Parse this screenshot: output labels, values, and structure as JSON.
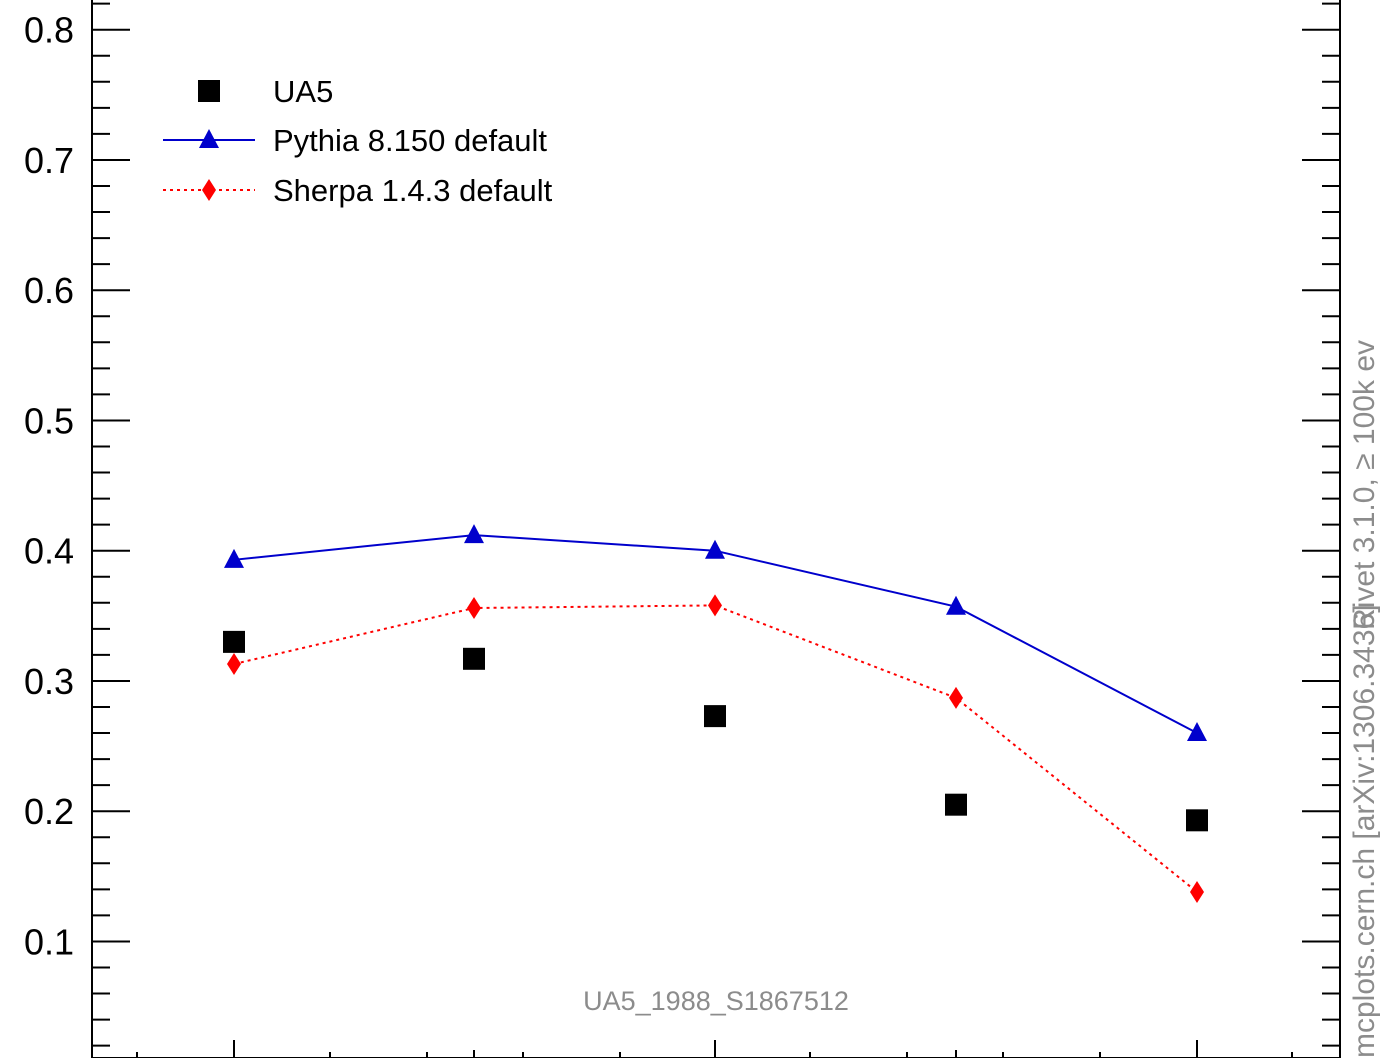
{
  "chart_data": {
    "type": "scatter",
    "x": [
      1,
      2,
      3,
      4,
      5
    ],
    "ylim": [
      0.0,
      0.8
    ],
    "yticks": [
      0.1,
      0.2,
      0.3,
      0.4,
      0.5,
      0.6,
      0.7,
      0.8
    ],
    "ytick_labels": [
      "0.1",
      "0.2",
      "0.3",
      "0.4",
      "0.5",
      "0.6",
      "0.7",
      "0.8"
    ],
    "series": [
      {
        "name": "UA5",
        "marker": "square",
        "line": "none",
        "color": "#000000",
        "values": [
          0.33,
          0.317,
          0.273,
          0.205,
          0.193
        ]
      },
      {
        "name": "Pythia 8.150 default",
        "marker": "triangle",
        "line": "solid",
        "color": "#0000cc",
        "values": [
          0.393,
          0.412,
          0.4,
          0.357,
          0.26
        ]
      },
      {
        "name": "Sherpa 1.4.3 default",
        "marker": "diamond",
        "line": "dotted",
        "color": "#ff0000",
        "values": [
          0.313,
          0.356,
          0.358,
          0.287,
          0.138
        ]
      }
    ],
    "legend_position": "top-left",
    "watermark": "UA5_1988_S1867512",
    "side_text_top": "Rivet 3.1.0, ≥ 100k ev",
    "side_text_bottom": "mcplots.cern.ch [arXiv:1306.3436]"
  }
}
